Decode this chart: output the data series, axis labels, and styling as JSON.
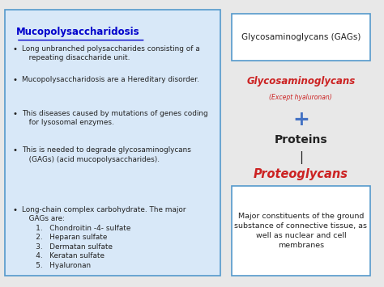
{
  "bg_color": "#e8e8e8",
  "left_box": {
    "title": "Mucopolysaccharidosis",
    "title_color": "#0000cc",
    "bullets": [
      "Long unbranched polysaccharides consisting of a\n   repeating disaccharide unit.",
      "Mucopolysaccharidosis are a Hereditary disorder.",
      "This diseases caused by mutations of genes coding\n   for lysosomal enzymes.",
      "This is needed to degrade glycosaminoglycans\n   (GAGs) (acid mucopolysaccharides).",
      "Long-chain complex carbohydrate. The major\n   GAGs are:\n      1.   Chondroitin -4- sulfate\n      2.   Heparan sulfate\n      3.   Dermatan sulfate\n      4.   Keratan sulfate\n      5.   Hyaluronan"
    ],
    "box_color": "#d8e8f8",
    "border_color": "#5599cc"
  },
  "top_right_box": {
    "text": "Glycosaminoglycans (GAGs)",
    "text_color": "#222222",
    "box_color": "#ffffff",
    "border_color": "#5599cc"
  },
  "middle_right": {
    "gag_text": "Glycosaminoglycans",
    "gag_color": "#cc2222",
    "except_text": "(Except hyaluronan)",
    "except_color": "#cc2222",
    "plus_text": "+",
    "plus_color": "#4472c4",
    "proteins_text": "Proteins",
    "proteins_color": "#222222",
    "arrow_text": "|",
    "arrow_color": "#222222",
    "proteoglycans_text": "Proteoglycans",
    "proteoglycans_color": "#cc2222"
  },
  "bottom_right_box": {
    "text": "Major constituents of the ground\nsubstance of connective tissue, as\nwell as nuclear and cell\nmembranes",
    "text_color": "#222222",
    "box_color": "#ffffff",
    "border_color": "#5599cc"
  }
}
